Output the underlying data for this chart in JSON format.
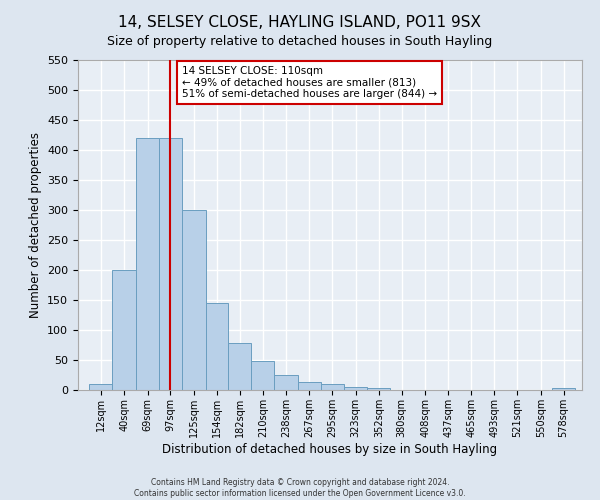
{
  "title": "14, SELSEY CLOSE, HAYLING ISLAND, PO11 9SX",
  "subtitle": "Size of property relative to detached houses in South Hayling",
  "xlabel": "Distribution of detached houses by size in South Hayling",
  "ylabel": "Number of detached properties",
  "bin_labels": [
    "12sqm",
    "40sqm",
    "69sqm",
    "97sqm",
    "125sqm",
    "154sqm",
    "182sqm",
    "210sqm",
    "238sqm",
    "267sqm",
    "295sqm",
    "323sqm",
    "352sqm",
    "380sqm",
    "408sqm",
    "437sqm",
    "465sqm",
    "493sqm",
    "521sqm",
    "550sqm",
    "578sqm"
  ],
  "bar_heights": [
    10,
    200,
    420,
    420,
    300,
    145,
    78,
    48,
    25,
    13,
    10,
    5,
    4,
    0,
    0,
    0,
    0,
    0,
    0,
    0,
    3
  ],
  "bar_color": "#b8d0e8",
  "bar_edge_color": "#6a9ec0",
  "bin_values": [
    12,
    40,
    69,
    97,
    125,
    154,
    182,
    210,
    238,
    267,
    295,
    323,
    352,
    380,
    408,
    437,
    465,
    493,
    521,
    550,
    578
  ],
  "vline_x": 110,
  "vline_color": "#cc0000",
  "ylim": [
    0,
    550
  ],
  "yticks": [
    0,
    50,
    100,
    150,
    200,
    250,
    300,
    350,
    400,
    450,
    500,
    550
  ],
  "annotation_title": "14 SELSEY CLOSE: 110sqm",
  "annotation_line1": "← 49% of detached houses are smaller (813)",
  "annotation_line2": "51% of semi-detached houses are larger (844) →",
  "annotation_box_color": "#ffffff",
  "annotation_border_color": "#cc0000",
  "footer_line1": "Contains HM Land Registry data © Crown copyright and database right 2024.",
  "footer_line2": "Contains public sector information licensed under the Open Government Licence v3.0.",
  "background_color": "#dde6f0",
  "plot_bg_color": "#e8eef5",
  "grid_color": "#ffffff",
  "title_fontsize": 11,
  "subtitle_fontsize": 9
}
